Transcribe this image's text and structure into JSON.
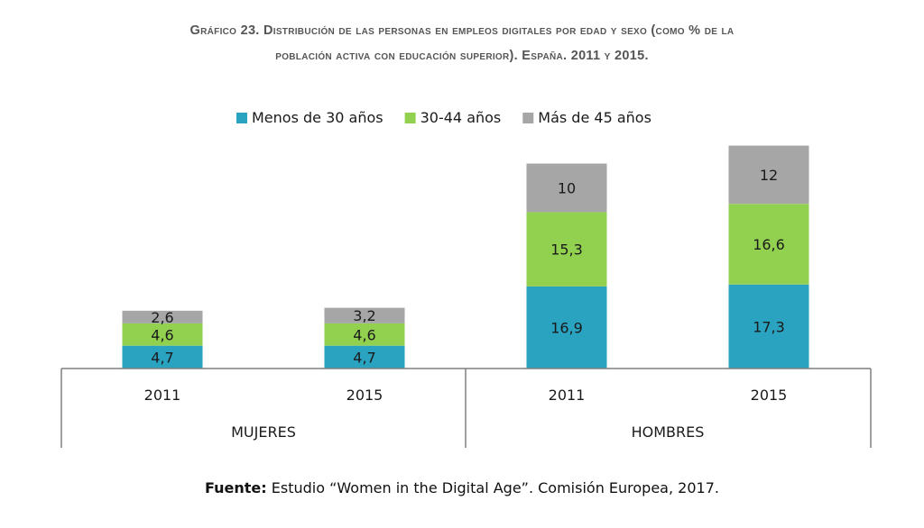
{
  "chart_data": {
    "type": "bar",
    "stacked": true,
    "title_line1": "Gráfico 23. Distribución de las personas en empleos digitales por edad y sexo (como % de la",
    "title_line2": "población activa con educación superior). España. 2011 y 2015.",
    "groups": [
      {
        "label": "MUJERES",
        "categories": [
          "2011",
          "2015"
        ]
      },
      {
        "label": "HOMBRES",
        "categories": [
          "2011",
          "2015"
        ]
      }
    ],
    "series": [
      {
        "name": "Menos de 30 años",
        "color": "#2aa3c0",
        "values": [
          4.7,
          4.7,
          16.9,
          17.3
        ],
        "labels": [
          "4,7",
          "4,7",
          "16,9",
          "17,3"
        ]
      },
      {
        "name": "30-44 años",
        "color": "#92d050",
        "values": [
          4.6,
          4.6,
          15.3,
          16.6
        ],
        "labels": [
          "4,6",
          "4,6",
          "15,3",
          "16,6"
        ]
      },
      {
        "name": "Más de 45 años",
        "color": "#a6a6a6",
        "values": [
          2.6,
          3.2,
          10,
          12
        ],
        "labels": [
          "2,6",
          "3,2",
          "10",
          "12"
        ]
      }
    ],
    "legend_position": "top",
    "grid": false
  },
  "source": {
    "label": "Fuente:",
    "text": " Estudio “Women in the Digital Age”. Comisión Europea, 2017."
  }
}
